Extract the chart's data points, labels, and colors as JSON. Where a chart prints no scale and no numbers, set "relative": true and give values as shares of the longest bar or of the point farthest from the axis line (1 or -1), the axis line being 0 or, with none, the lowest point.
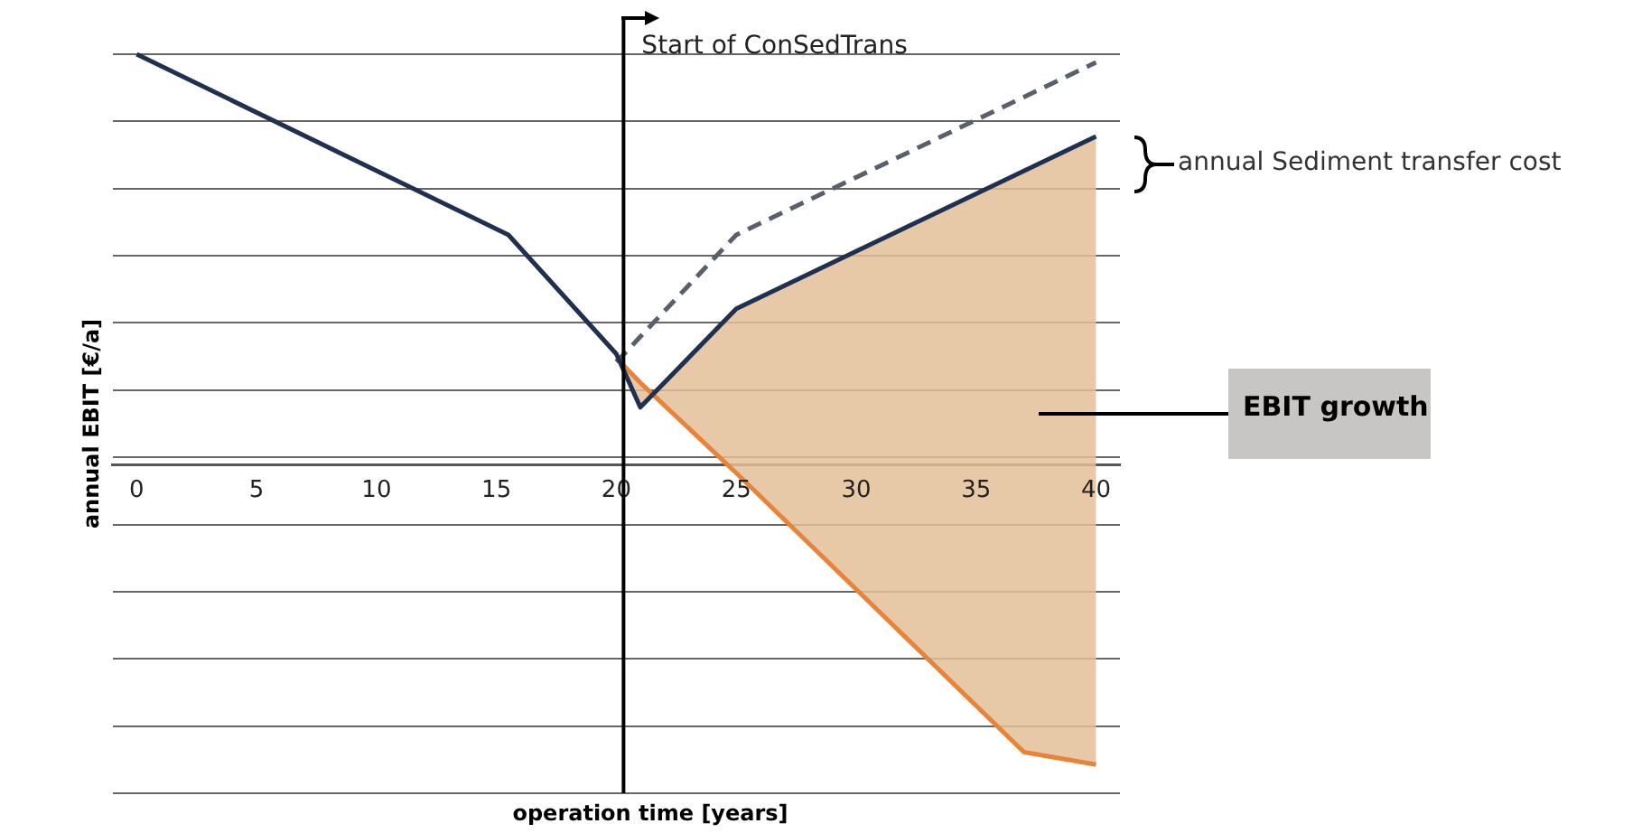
{
  "chart_data": {
    "type": "line",
    "relative": true,
    "xlabel": "operation time  [years]",
    "ylabel": "annual EBIT [€/a]",
    "xlim": [
      -1,
      41
    ],
    "xticks": [
      0,
      5,
      10,
      15,
      20,
      25,
      30,
      35,
      40
    ],
    "grid": "y",
    "legend": false,
    "marker": "none",
    "series": [
      {
        "x": [
          0,
          15.5,
          20,
          21,
          25,
          40
        ],
        "values": [
          1,
          0.56,
          0.27,
          0.14,
          0.38,
          0.8
        ],
        "color": "#1f3050",
        "line_style": "solid"
      },
      {
        "x": [
          20,
          25,
          40
        ],
        "values": [
          0.25,
          0.56,
          0.98
        ],
        "color": "#5a606b",
        "line_style": "dashed"
      },
      {
        "x": [
          20,
          21,
          25,
          37,
          40
        ],
        "values": [
          0.26,
          0.2,
          -0.02,
          -0.7,
          -0.73
        ],
        "lower": [
          0.26,
          0.2,
          -0.02,
          -0.7,
          -0.73
        ],
        "upper": [
          0.27,
          0.14,
          0.38,
          0.72,
          0.8
        ],
        "color": "#e8843a",
        "line_style": "solid"
      }
    ],
    "ref_lines": [
      {
        "axis": "x",
        "value": 20.3,
        "label": "Start of ConSedTrans",
        "color": "#000000"
      }
    ],
    "annotations": [
      "annual Sediment transfer cost",
      "EBIT growth"
    ]
  }
}
